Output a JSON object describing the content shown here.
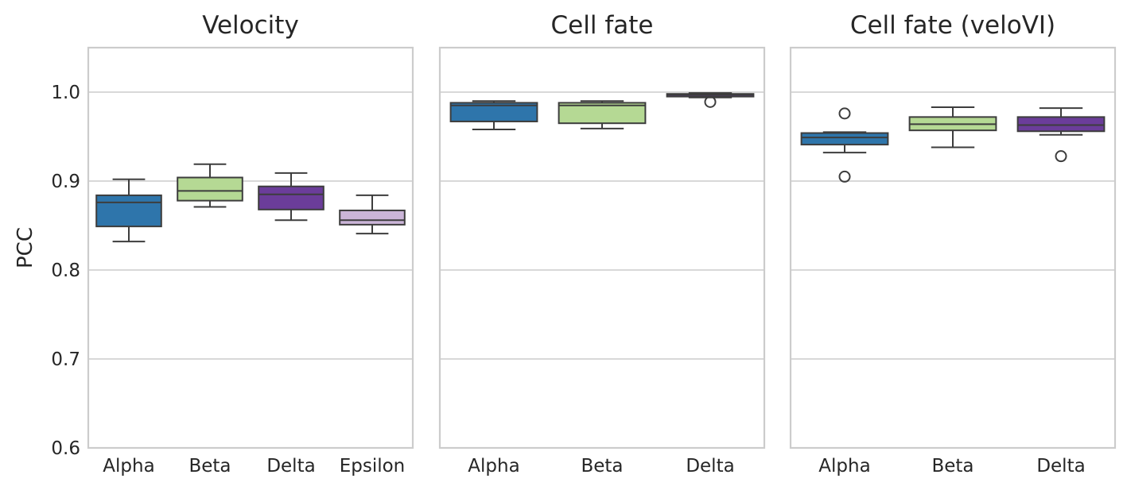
{
  "chart_data": [
    {
      "type": "box",
      "title": "Velocity",
      "ylabel": "PCC",
      "ylim": [
        0.6,
        1.05
      ],
      "yticks": [
        "0.6",
        "0.7",
        "0.8",
        "0.9",
        "1.0"
      ],
      "ytick_values": [
        0.6,
        0.7,
        0.8,
        0.9,
        1.0
      ],
      "grid": true,
      "categories": [
        "Alpha",
        "Beta",
        "Delta",
        "Epsilon"
      ],
      "colors": [
        "#2e75ab",
        "#b5d994",
        "#6b3d9a",
        "#cbb5d8"
      ],
      "boxes": [
        {
          "min": 0.832,
          "q1": 0.849,
          "median": 0.876,
          "q3": 0.884,
          "max": 0.902,
          "outliers": []
        },
        {
          "min": 0.871,
          "q1": 0.878,
          "median": 0.889,
          "q3": 0.904,
          "max": 0.919,
          "outliers": []
        },
        {
          "min": 0.856,
          "q1": 0.868,
          "median": 0.885,
          "q3": 0.894,
          "max": 0.909,
          "outliers": []
        },
        {
          "min": 0.841,
          "q1": 0.851,
          "median": 0.856,
          "q3": 0.867,
          "max": 0.884,
          "outliers": []
        }
      ]
    },
    {
      "type": "box",
      "title": "Cell fate",
      "ylabel": "",
      "ylim": [
        0.6,
        1.05
      ],
      "grid": true,
      "categories": [
        "Alpha",
        "Beta",
        "Delta"
      ],
      "colors": [
        "#2e75ab",
        "#b5d994",
        "#6b3d9a"
      ],
      "boxes": [
        {
          "min": 0.958,
          "q1": 0.967,
          "median": 0.985,
          "q3": 0.988,
          "max": 0.99,
          "outliers": []
        },
        {
          "min": 0.959,
          "q1": 0.965,
          "median": 0.985,
          "q3": 0.988,
          "max": 0.99,
          "outliers": []
        },
        {
          "min": 0.994,
          "q1": 0.995,
          "median": 0.997,
          "q3": 0.998,
          "max": 0.999,
          "outliers": [
            0.989
          ]
        }
      ]
    },
    {
      "type": "box",
      "title": "Cell fate (veloVI)",
      "ylabel": "",
      "ylim": [
        0.6,
        1.05
      ],
      "grid": true,
      "categories": [
        "Alpha",
        "Beta",
        "Delta"
      ],
      "colors": [
        "#2e75ab",
        "#b5d994",
        "#6b3d9a"
      ],
      "boxes": [
        {
          "min": 0.932,
          "q1": 0.941,
          "median": 0.949,
          "q3": 0.954,
          "max": 0.955,
          "outliers": [
            0.976,
            0.905
          ]
        },
        {
          "min": 0.938,
          "q1": 0.957,
          "median": 0.964,
          "q3": 0.972,
          "max": 0.983,
          "outliers": []
        },
        {
          "min": 0.952,
          "q1": 0.956,
          "median": 0.963,
          "q3": 0.972,
          "max": 0.982,
          "outliers": [
            0.928
          ]
        }
      ]
    }
  ]
}
